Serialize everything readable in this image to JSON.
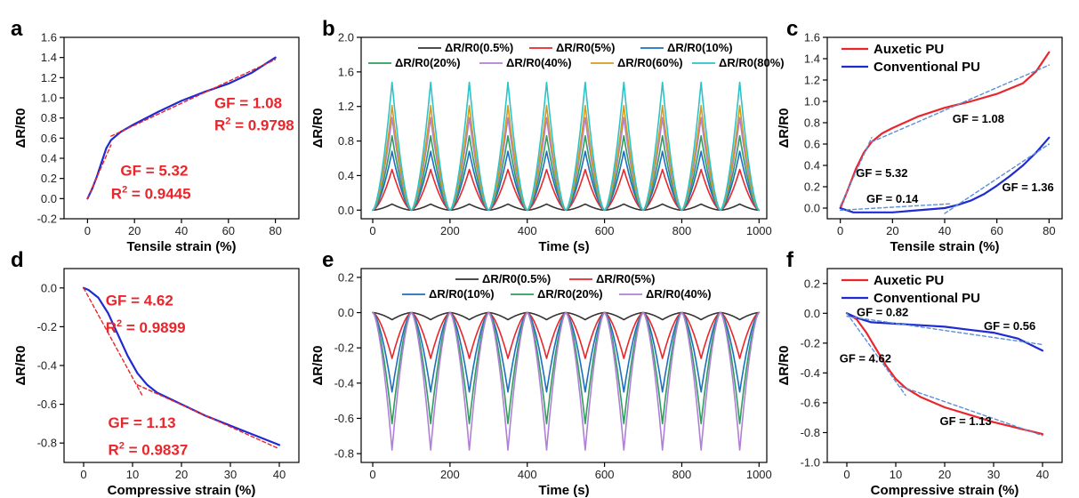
{
  "chart_data": [
    {
      "panel": "a",
      "type": "line",
      "xlabel": "Tensile strain (%)",
      "ylabel": "ΔR/R0",
      "xlim": [
        -10,
        90
      ],
      "ylim": [
        -0.2,
        1.6
      ],
      "xticks": [
        0,
        20,
        40,
        60,
        80
      ],
      "yticks": [
        -0.2,
        0.0,
        0.2,
        0.4,
        0.6,
        0.8,
        1.0,
        1.2,
        1.4,
        1.6
      ],
      "series": [
        {
          "color": "#1f2bd1",
          "x": [
            0,
            2,
            4,
            6,
            8,
            10,
            14,
            20,
            30,
            40,
            50,
            60,
            70,
            80
          ],
          "y": [
            0.0,
            0.1,
            0.22,
            0.36,
            0.5,
            0.58,
            0.66,
            0.74,
            0.86,
            0.97,
            1.06,
            1.14,
            1.25,
            1.4
          ]
        },
        {
          "style": "dashed",
          "color": "#e8262b",
          "x": [
            0,
            10
          ],
          "y": [
            0.0,
            0.532
          ]
        },
        {
          "style": "dashed",
          "color": "#e8262b",
          "x": [
            10,
            80
          ],
          "y": [
            0.62,
            1.38
          ]
        }
      ],
      "annotations": [
        {
          "text": "GF = 1.08",
          "x": 54,
          "y": 0.9
        },
        {
          "text": "R² = 0.9798",
          "x": 54,
          "y": 0.68
        },
        {
          "text": "GF = 5.32",
          "x": 14,
          "y": 0.23
        },
        {
          "text": "R² = 0.9445",
          "x": 10,
          "y": 0.0
        }
      ]
    },
    {
      "panel": "b",
      "type": "line",
      "xlabel": "Time (s)",
      "ylabel": "ΔR/R0",
      "xlim": [
        -30,
        1020
      ],
      "ylim": [
        -0.1,
        2.0
      ],
      "xticks": [
        0,
        200,
        400,
        600,
        800,
        1000
      ],
      "yticks": [
        0.0,
        0.4,
        0.8,
        1.2,
        1.6,
        2.0
      ],
      "period_s": 100,
      "peak_time_offset_s": 50,
      "series": [
        {
          "name": "ΔR/R0(0.5%)",
          "color": "#333333",
          "peak": 0.07
        },
        {
          "name": "ΔR/R0(5%)",
          "color": "#e8262b",
          "peak": 0.47
        },
        {
          "name": "ΔR/R0(10%)",
          "color": "#1c6fc0",
          "peak": 0.68
        },
        {
          "name": "ΔR/R0(20%)",
          "color": "#2e9e5a",
          "peak": 0.86
        },
        {
          "name": "ΔR/R0(40%)",
          "color": "#b07fd6",
          "peak": 1.07
        },
        {
          "name": "ΔR/R0(60%)",
          "color": "#d89a1e",
          "peak": 1.21
        },
        {
          "name": "ΔR/R0(80%)",
          "color": "#2cc3c9",
          "peak": 1.48
        }
      ]
    },
    {
      "panel": "c",
      "type": "line",
      "xlabel": "Tensile strain (%)",
      "ylabel": "ΔR/R0",
      "xlim": [
        -5,
        85
      ],
      "ylim": [
        -0.1,
        1.6
      ],
      "xticks": [
        0,
        20,
        40,
        60,
        80
      ],
      "yticks": [
        0.0,
        0.2,
        0.4,
        0.6,
        0.8,
        1.0,
        1.2,
        1.4,
        1.6
      ],
      "series": [
        {
          "name": "Auxetic PU",
          "color": "#e8262b",
          "x": [
            0,
            3,
            6,
            9,
            12,
            16,
            20,
            30,
            40,
            50,
            60,
            70,
            75,
            80
          ],
          "y": [
            0.0,
            0.18,
            0.37,
            0.52,
            0.62,
            0.7,
            0.75,
            0.86,
            0.94,
            1.0,
            1.07,
            1.17,
            1.28,
            1.46
          ]
        },
        {
          "name": "Conventional PU",
          "color": "#1f2bd1",
          "x": [
            0,
            5,
            10,
            20,
            30,
            40,
            45,
            50,
            55,
            60,
            65,
            70,
            75,
            80
          ],
          "y": [
            0.0,
            -0.04,
            -0.04,
            -0.04,
            -0.02,
            0.0,
            0.03,
            0.07,
            0.13,
            0.21,
            0.3,
            0.4,
            0.52,
            0.66
          ]
        },
        {
          "style": "dashed",
          "color": "#5b8fd9",
          "x": [
            0,
            12
          ],
          "y": [
            0.02,
            0.66
          ]
        },
        {
          "style": "dashed",
          "color": "#5b8fd9",
          "x": [
            12,
            80
          ],
          "y": [
            0.62,
            1.34
          ]
        },
        {
          "style": "dashed",
          "color": "#5b8fd9",
          "x": [
            0,
            42
          ],
          "y": [
            -0.02,
            0.04
          ]
        },
        {
          "style": "dashed",
          "color": "#5b8fd9",
          "x": [
            40,
            80
          ],
          "y": [
            -0.05,
            0.6
          ]
        }
      ],
      "annotations": [
        {
          "text": "GF = 1.08",
          "x": 43,
          "y": 0.8
        },
        {
          "text": "GF = 5.32",
          "x": 6,
          "y": 0.29
        },
        {
          "text": "GF = 0.14",
          "x": 10,
          "y": 0.05
        },
        {
          "text": "GF = 1.36",
          "x": 62,
          "y": 0.16
        }
      ]
    },
    {
      "panel": "d",
      "type": "line",
      "xlabel": "Compressive strain (%)",
      "ylabel": "ΔR/R0",
      "xlim": [
        -4,
        44
      ],
      "ylim": [
        -0.9,
        0.1
      ],
      "xticks": [
        0,
        10,
        20,
        30,
        40
      ],
      "yticks": [
        -0.8,
        -0.6,
        -0.4,
        -0.2,
        0.0
      ],
      "series": [
        {
          "color": "#1f2bd1",
          "x": [
            0,
            1,
            3,
            5,
            7,
            9,
            11,
            13,
            15,
            20,
            25,
            30,
            35,
            40
          ],
          "y": [
            0.0,
            -0.01,
            -0.05,
            -0.13,
            -0.24,
            -0.35,
            -0.44,
            -0.5,
            -0.54,
            -0.6,
            -0.66,
            -0.71,
            -0.76,
            -0.81
          ]
        },
        {
          "style": "dashed",
          "color": "#e8262b",
          "x": [
            0,
            12
          ],
          "y": [
            0.0,
            -0.555
          ]
        },
        {
          "style": "dashed",
          "color": "#e8262b",
          "x": [
            11,
            40
          ],
          "y": [
            -0.5,
            -0.83
          ]
        }
      ],
      "annotations": [
        {
          "text": "GF = 4.62",
          "x": 4.5,
          "y": -0.09
        },
        {
          "text": "R² = 0.9899",
          "x": 4.5,
          "y": -0.23
        },
        {
          "text": "GF = 1.13",
          "x": 5,
          "y": -0.72
        },
        {
          "text": "R² = 0.9837",
          "x": 5,
          "y": -0.86
        }
      ]
    },
    {
      "panel": "e",
      "type": "line",
      "xlabel": "Time (s)",
      "ylabel": "ΔR/R0",
      "xlim": [
        -30,
        1020
      ],
      "ylim": [
        -0.85,
        0.25
      ],
      "xticks": [
        0,
        200,
        400,
        600,
        800,
        1000
      ],
      "yticks": [
        -0.8,
        -0.6,
        -0.4,
        -0.2,
        0.0,
        0.2
      ],
      "period_s": 100,
      "peak_time_offset_s": 50,
      "series": [
        {
          "name": "ΔR/R0(0.5%)",
          "color": "#333333",
          "peak": -0.04
        },
        {
          "name": "ΔR/R0(5%)",
          "color": "#e8262b",
          "peak": -0.26
        },
        {
          "name": "ΔR/R0(10%)",
          "color": "#1c6fc0",
          "peak": -0.45
        },
        {
          "name": "ΔR/R0(20%)",
          "color": "#2e9e5a",
          "peak": -0.63
        },
        {
          "name": "ΔR/R0(40%)",
          "color": "#b07fd6",
          "peak": -0.78
        }
      ]
    },
    {
      "panel": "f",
      "type": "line",
      "xlabel": "Compressive strain (%)",
      "ylabel": "ΔR/R0",
      "xlim": [
        -4,
        44
      ],
      "ylim": [
        -1.0,
        0.3
      ],
      "xticks": [
        0,
        10,
        20,
        30,
        40
      ],
      "yticks": [
        -1.0,
        -0.8,
        -0.6,
        -0.4,
        -0.2,
        0.0,
        0.2
      ],
      "series": [
        {
          "name": "Auxetic PU",
          "color": "#e8262b",
          "x": [
            0,
            2,
            4,
            6,
            8,
            10,
            12,
            15,
            20,
            25,
            30,
            35,
            40
          ],
          "y": [
            0.0,
            -0.04,
            -0.13,
            -0.24,
            -0.35,
            -0.44,
            -0.5,
            -0.56,
            -0.63,
            -0.68,
            -0.73,
            -0.77,
            -0.81
          ]
        },
        {
          "name": "Conventional PU",
          "color": "#1f2bd1",
          "x": [
            0,
            2,
            5,
            10,
            15,
            20,
            25,
            30,
            35,
            40
          ],
          "y": [
            0.0,
            -0.03,
            -0.06,
            -0.07,
            -0.08,
            -0.09,
            -0.11,
            -0.13,
            -0.17,
            -0.25
          ]
        },
        {
          "style": "dashed",
          "color": "#5b8fd9",
          "x": [
            0,
            40
          ],
          "y": [
            -0.02,
            -0.21
          ]
        },
        {
          "style": "dashed",
          "color": "#5b8fd9",
          "x": [
            0,
            12
          ],
          "y": [
            0.0,
            -0.55
          ]
        },
        {
          "style": "dashed",
          "color": "#5b8fd9",
          "x": [
            11,
            40
          ],
          "y": [
            -0.49,
            -0.82
          ]
        }
      ],
      "annotations": [
        {
          "text": "GF = 0.82",
          "x": 2,
          "y": -0.02
        },
        {
          "text": "GF = 0.56",
          "x": 28,
          "y": -0.11
        },
        {
          "text": "GF = 4.62",
          "x": -1.5,
          "y": -0.33
        },
        {
          "text": "GF = 1.13",
          "x": 19,
          "y": -0.75
        }
      ]
    }
  ]
}
